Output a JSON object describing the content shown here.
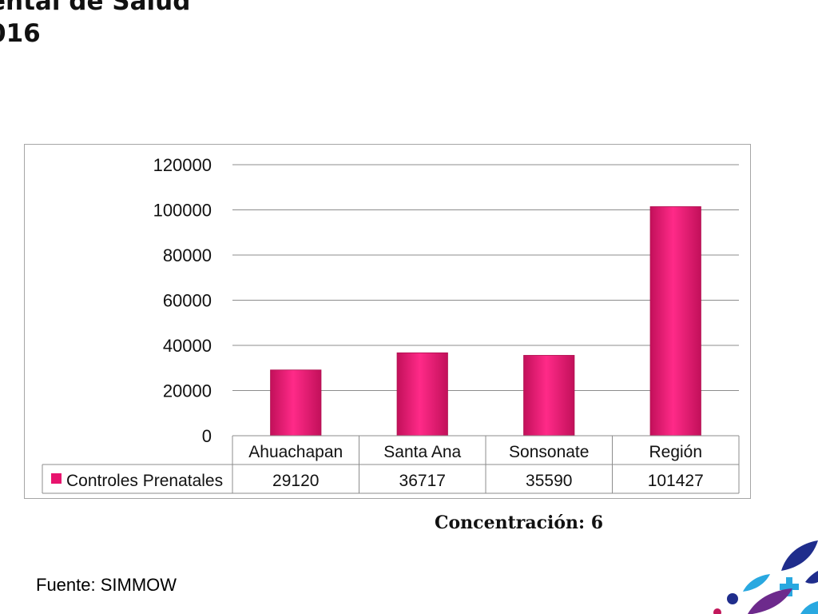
{
  "header": {
    "title_line1": "ental de Salud",
    "title_line2": "016"
  },
  "chart_data": {
    "type": "bar",
    "categories": [
      "Ahuachapan",
      "Santa Ana",
      "Sonsonate",
      "Región"
    ],
    "series": [
      {
        "name": "Controles Prenatales",
        "values": [
          29120,
          36717,
          35590,
          101427
        ],
        "color": "#e8146e"
      }
    ],
    "ylim": [
      0,
      120000
    ],
    "yticks": [
      0,
      20000,
      40000,
      60000,
      80000,
      100000,
      120000
    ],
    "grid": true,
    "legend": "data-table",
    "data_table": true
  },
  "footer": {
    "concentration": "Concentración: 6",
    "source": "Fuente: SIMMOW"
  },
  "colors": {
    "bar": "#e8146e",
    "grid": "#8c8c8c",
    "logo_navy": "#1f2d8c",
    "logo_cyan": "#29a8e0",
    "logo_purple": "#6d2a8c",
    "logo_magenta": "#c2185b"
  }
}
